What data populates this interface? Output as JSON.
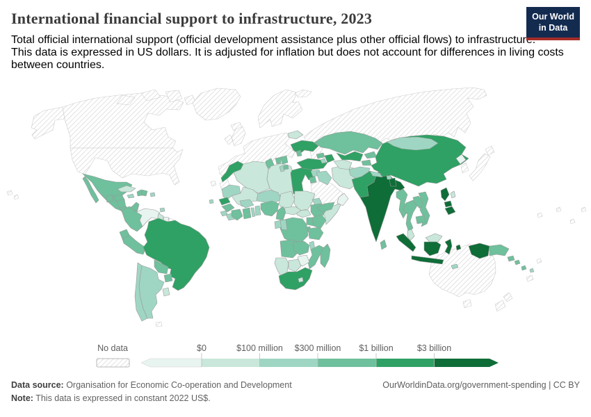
{
  "header": {
    "title": "International financial support to infrastructure, 2023",
    "subtitle_line1": "Total official international support (official development assistance plus other official flows) to infrastructure.",
    "subtitle_line2": "This data is expressed in US dollars. It is adjusted for inflation but does not account for differences in living costs",
    "subtitle_line3": "between countries.",
    "logo": {
      "line1": "Our World",
      "line2": "in Data"
    }
  },
  "colors": {
    "logo_bg": "#142b50",
    "logo_accent": "#a52d28",
    "hatch_line": "#dcdcdc",
    "border": "#999999"
  },
  "chart_data": {
    "type": "choropleth",
    "title": "International financial support to infrastructure, 2023",
    "unit": "US dollars (constant 2022 US$)",
    "legend_position": "bottom",
    "no_data_label": "No data",
    "bin_edges_labels": [
      "$0",
      "$100 million",
      "$300 million",
      "$1 billion",
      "$3 billion"
    ],
    "bin_colors": [
      "#e8f4ef",
      "#c9e7da",
      "#9fd6c3",
      "#6fc09c",
      "#2fa164",
      "#0f6d38"
    ],
    "bin_meaning": [
      "below $0",
      "$0-$100 million",
      "$100-$300 million",
      "$300 million-$1 billion",
      "$1-$3 billion",
      "over $3 billion"
    ],
    "countries": [
      {
        "name": "Mexico",
        "bin": 4
      },
      {
        "name": "Guatemala",
        "bin": 4
      },
      {
        "name": "Honduras",
        "bin": 4
      },
      {
        "name": "Nicaragua",
        "bin": 4
      },
      {
        "name": "Costa Rica",
        "bin": 4
      },
      {
        "name": "Panama",
        "bin": 4
      },
      {
        "name": "Cuba",
        "bin": 2
      },
      {
        "name": "Jamaica",
        "bin": 3
      },
      {
        "name": "Haiti",
        "bin": 4
      },
      {
        "name": "Dominican Republic",
        "bin": 4
      },
      {
        "name": "Puerto Rico",
        "bin": 3
      },
      {
        "name": "Trinidad and Tobago",
        "bin": 3
      },
      {
        "name": "Colombia",
        "bin": 4
      },
      {
        "name": "Venezuela",
        "bin": 1
      },
      {
        "name": "Guyana",
        "bin": 2
      },
      {
        "name": "Suriname",
        "bin": 1
      },
      {
        "name": "Ecuador",
        "bin": 4
      },
      {
        "name": "Peru",
        "bin": 4
      },
      {
        "name": "Brazil",
        "bin": 5
      },
      {
        "name": "Bolivia",
        "bin": 4
      },
      {
        "name": "Paraguay",
        "bin": 4
      },
      {
        "name": "Chile",
        "bin": 3
      },
      {
        "name": "Argentina",
        "bin": 3
      },
      {
        "name": "Uruguay",
        "bin": 2
      },
      {
        "name": "Morocco",
        "bin": 5
      },
      {
        "name": "Algeria",
        "bin": 2
      },
      {
        "name": "Tunisia",
        "bin": 4
      },
      {
        "name": "Libya",
        "bin": 2
      },
      {
        "name": "Egypt",
        "bin": 5
      },
      {
        "name": "Mauritania",
        "bin": 3
      },
      {
        "name": "Mali",
        "bin": 2
      },
      {
        "name": "Niger",
        "bin": 3
      },
      {
        "name": "Chad",
        "bin": 2
      },
      {
        "name": "Sudan",
        "bin": 2
      },
      {
        "name": "South Sudan",
        "bin": 2
      },
      {
        "name": "Eritrea",
        "bin": 3
      },
      {
        "name": "Djibouti",
        "bin": 4
      },
      {
        "name": "Senegal",
        "bin": 5
      },
      {
        "name": "Guinea",
        "bin": 4
      },
      {
        "name": "Sierra Leone",
        "bin": 3
      },
      {
        "name": "Liberia",
        "bin": 3
      },
      {
        "name": "Cote d'Ivoire",
        "bin": 4
      },
      {
        "name": "Ghana",
        "bin": 4
      },
      {
        "name": "Togo",
        "bin": 3
      },
      {
        "name": "Benin",
        "bin": 3
      },
      {
        "name": "Burkina Faso",
        "bin": 3
      },
      {
        "name": "Nigeria",
        "bin": 4
      },
      {
        "name": "Cameroon",
        "bin": 4
      },
      {
        "name": "Central African Republic",
        "bin": 2
      },
      {
        "name": "Ethiopia",
        "bin": 4
      },
      {
        "name": "Somalia",
        "bin": 2
      },
      {
        "name": "Kenya",
        "bin": 4
      },
      {
        "name": "Uganda",
        "bin": 4
      },
      {
        "name": "Rwanda",
        "bin": 4
      },
      {
        "name": "DR Congo",
        "bin": 4
      },
      {
        "name": "Gabon",
        "bin": 3
      },
      {
        "name": "Congo",
        "bin": 3
      },
      {
        "name": "Tanzania",
        "bin": 4
      },
      {
        "name": "Angola",
        "bin": 4
      },
      {
        "name": "Zambia",
        "bin": 4
      },
      {
        "name": "Malawi",
        "bin": 3
      },
      {
        "name": "Mozambique",
        "bin": 4
      },
      {
        "name": "Zimbabwe",
        "bin": 1
      },
      {
        "name": "Botswana",
        "bin": 2
      },
      {
        "name": "Namibia",
        "bin": 2
      },
      {
        "name": "South Africa",
        "bin": 5
      },
      {
        "name": "Lesotho",
        "bin": 2
      },
      {
        "name": "Madagascar",
        "bin": 4
      },
      {
        "name": "Cape Verde",
        "bin": 3
      },
      {
        "name": "Ukraine",
        "bin": 5
      },
      {
        "name": "Belarus",
        "bin": 2
      },
      {
        "name": "Moldova",
        "bin": 4
      },
      {
        "name": "Serbia",
        "bin": 4
      },
      {
        "name": "Bosnia and Herzegovina",
        "bin": 4
      },
      {
        "name": "Albania",
        "bin": 3
      },
      {
        "name": "North Macedonia",
        "bin": 4
      },
      {
        "name": "Turkey",
        "bin": 5
      },
      {
        "name": "Georgia",
        "bin": 4
      },
      {
        "name": "Armenia",
        "bin": 3
      },
      {
        "name": "Azerbaijan",
        "bin": 5
      },
      {
        "name": "Syria",
        "bin": 3
      },
      {
        "name": "Jordan",
        "bin": 4
      },
      {
        "name": "Iraq",
        "bin": 3
      },
      {
        "name": "Iran",
        "bin": 2
      },
      {
        "name": "Yemen",
        "bin": 4
      },
      {
        "name": "Oman",
        "bin": 1
      },
      {
        "name": "Kazakhstan",
        "bin": 4
      },
      {
        "name": "Uzbekistan",
        "bin": 5
      },
      {
        "name": "Turkmenistan",
        "bin": 2
      },
      {
        "name": "Kyrgyzstan",
        "bin": 4
      },
      {
        "name": "Tajikistan",
        "bin": 4
      },
      {
        "name": "Afghanistan",
        "bin": 3
      },
      {
        "name": "Pakistan",
        "bin": 5
      },
      {
        "name": "India",
        "bin": 6
      },
      {
        "name": "Nepal",
        "bin": 3
      },
      {
        "name": "Bhutan",
        "bin": 3
      },
      {
        "name": "Bangladesh",
        "bin": 6
      },
      {
        "name": "Sri Lanka",
        "bin": 4
      },
      {
        "name": "China",
        "bin": 5
      },
      {
        "name": "Mongolia",
        "bin": 3
      },
      {
        "name": "North Korea",
        "bin": 1
      },
      {
        "name": "Taiwan",
        "bin": 2
      },
      {
        "name": "Myanmar",
        "bin": 4
      },
      {
        "name": "Thailand",
        "bin": 4
      },
      {
        "name": "Laos",
        "bin": 4
      },
      {
        "name": "Vietnam",
        "bin": 4
      },
      {
        "name": "Cambodia",
        "bin": 4
      },
      {
        "name": "Malaysia",
        "bin": 2
      },
      {
        "name": "Indonesia",
        "bin": 6
      },
      {
        "name": "Papua New Guinea",
        "bin": 4
      },
      {
        "name": "Solomon Islands",
        "bin": 4
      },
      {
        "name": "Vanuatu",
        "bin": 3
      },
      {
        "name": "Philippines",
        "bin": 6
      },
      {
        "name": "Timor-Leste",
        "bin": 3
      }
    ],
    "no_data_regions": [
      "Alaska",
      "Canada",
      "Arctic Islands",
      "Greenland",
      "Iceland",
      "United States",
      "Europe",
      "Greece",
      "Scandinavia",
      "British Isles",
      "Russia",
      "Svalbard",
      "Saudi Arabia",
      "Japan",
      "South Korea",
      "Australia",
      "New Zealand",
      "French Guiana",
      "Western Sahara",
      "Falkland Islands",
      "Hawaii",
      "Canary Islands",
      "Pacific Islands",
      "Fiji",
      "New Caledonia"
    ]
  },
  "footer": {
    "source_label": "Data source:",
    "source_text": " Organisation for Economic Co-operation and Development",
    "note_label": "Note:",
    "note_text": " This data is expressed in constant 2022 US$.",
    "link_text": "OurWorldinData.org/government-spending | CC BY"
  }
}
